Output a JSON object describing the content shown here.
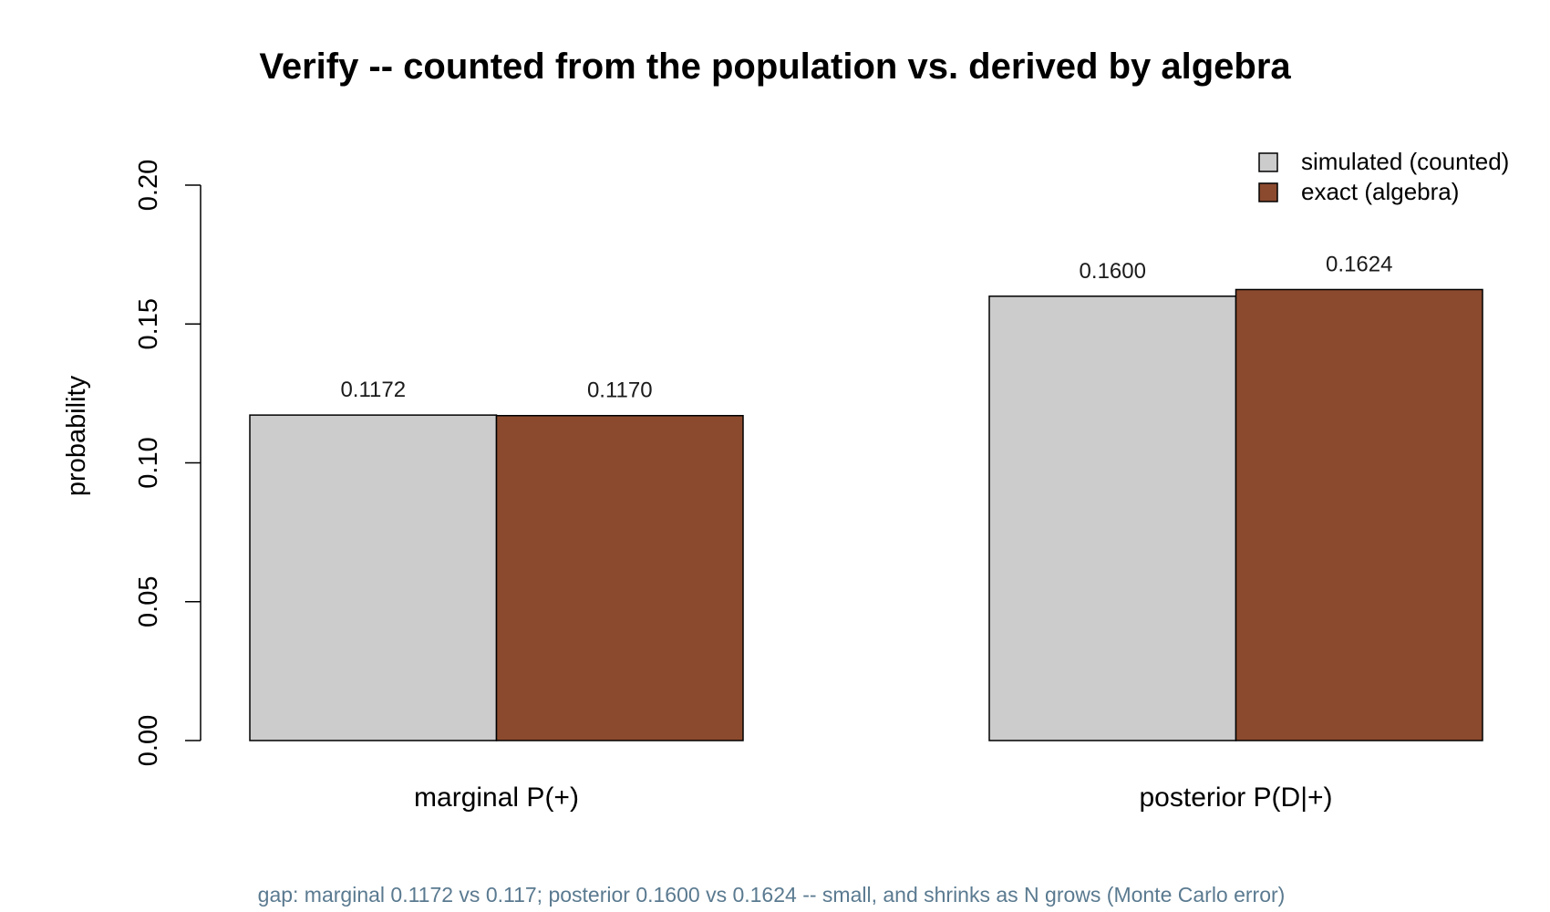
{
  "chart_data": {
    "type": "bar",
    "title": "Verify -- counted from the population vs. derived by algebra",
    "xlabel": "",
    "ylabel": "probability",
    "ylim": [
      0,
      0.2
    ],
    "yticks": [
      "0.00",
      "0.05",
      "0.10",
      "0.15",
      "0.20"
    ],
    "categories": [
      "marginal P(+)",
      "posterior P(D|+)"
    ],
    "series": [
      {
        "name": "simulated (counted)",
        "color": "#cccccc",
        "values": [
          0.1172,
          0.16
        ],
        "labels": [
          "0.1172",
          "0.1600"
        ]
      },
      {
        "name": "exact (algebra)",
        "color": "#8b4a2e",
        "values": [
          0.117,
          0.1624
        ],
        "labels": [
          "0.1170",
          "0.1624"
        ]
      }
    ],
    "legend_position": "top-right",
    "grid": false
  },
  "caption": {
    "text": "gap: marginal 0.1172 vs 0.117; posterior 0.1600 vs 0.1624 -- small, and shrinks as N grows (Monte Carlo error)",
    "color": "#5a7a90"
  }
}
